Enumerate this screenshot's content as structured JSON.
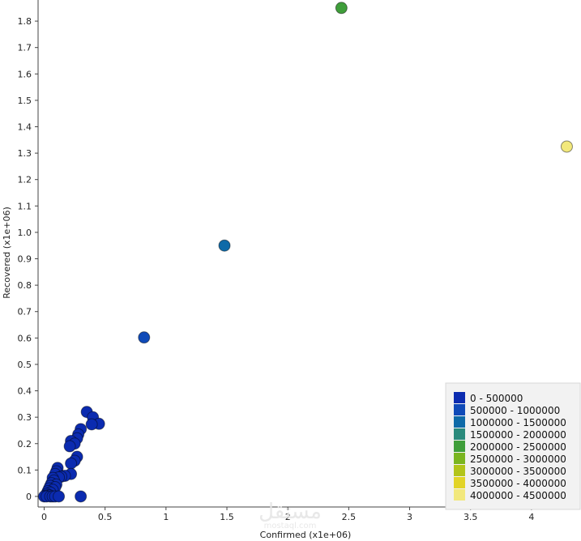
{
  "chart_data": {
    "type": "scatter",
    "title": "",
    "xlabel": "Confirmed (x1e+06)",
    "ylabel": "Recovered (x1e+06)",
    "xlim": [
      -0.05,
      4.4
    ],
    "ylim": [
      -0.04,
      1.88
    ],
    "grid": false,
    "legend_position": "bottom-right",
    "x_ticks": [
      0,
      0.5,
      1,
      1.5,
      2,
      2.5,
      3,
      3.5,
      4
    ],
    "x_tick_labels": [
      "0",
      "0.5",
      "1",
      "1.5",
      "2",
      "2.5",
      "3",
      "3.5",
      "4"
    ],
    "y_ticks": [
      0,
      0.1,
      0.2,
      0.3,
      0.4,
      0.5,
      0.6,
      0.7,
      0.8,
      0.9,
      1.0,
      1.1,
      1.2,
      1.3,
      1.4,
      1.5,
      1.6,
      1.7,
      1.8
    ],
    "y_tick_labels": [
      "0",
      "0.1",
      "0.2",
      "0.3",
      "0.4",
      "0.5",
      "0.6",
      "0.7",
      "0.8",
      "0.9",
      "1.0",
      "1.1",
      "1.2",
      "1.3",
      "1.4",
      "1.5",
      "1.6",
      "1.7",
      "1.8"
    ],
    "color_bins": [
      {
        "label": "0 - 500000",
        "color": "#0b2bb0"
      },
      {
        "label": "500000 - 1000000",
        "color": "#0f4ab8"
      },
      {
        "label": "1000000 - 1500000",
        "color": "#0e6aa8"
      },
      {
        "label": "1500000 - 2000000",
        "color": "#2a8a7c"
      },
      {
        "label": "2000000 - 2500000",
        "color": "#3f9e3a"
      },
      {
        "label": "2500000 - 3000000",
        "color": "#7ab51f"
      },
      {
        "label": "3000000 - 3500000",
        "color": "#b2c419"
      },
      {
        "label": "3500000 - 4000000",
        "color": "#e2d427"
      },
      {
        "label": "4000000 - 4500000",
        "color": "#f2e87c"
      }
    ],
    "points": [
      {
        "x": 4.29,
        "y": 1.325,
        "bin": 8
      },
      {
        "x": 2.44,
        "y": 1.85,
        "bin": 4
      },
      {
        "x": 1.48,
        "y": 0.95,
        "bin": 2
      },
      {
        "x": 0.82,
        "y": 0.602,
        "bin": 1
      },
      {
        "x": 0.35,
        "y": 0.32,
        "bin": 0
      },
      {
        "x": 0.4,
        "y": 0.3,
        "bin": 0
      },
      {
        "x": 0.45,
        "y": 0.275,
        "bin": 0
      },
      {
        "x": 0.39,
        "y": 0.273,
        "bin": 0
      },
      {
        "x": 0.3,
        "y": 0.255,
        "bin": 0
      },
      {
        "x": 0.28,
        "y": 0.235,
        "bin": 0
      },
      {
        "x": 0.27,
        "y": 0.22,
        "bin": 0
      },
      {
        "x": 0.22,
        "y": 0.21,
        "bin": 0
      },
      {
        "x": 0.25,
        "y": 0.2,
        "bin": 0
      },
      {
        "x": 0.21,
        "y": 0.19,
        "bin": 0
      },
      {
        "x": 0.27,
        "y": 0.15,
        "bin": 0
      },
      {
        "x": 0.25,
        "y": 0.135,
        "bin": 0
      },
      {
        "x": 0.22,
        "y": 0.125,
        "bin": 0
      },
      {
        "x": 0.11,
        "y": 0.108,
        "bin": 0
      },
      {
        "x": 0.1,
        "y": 0.095,
        "bin": 0
      },
      {
        "x": 0.09,
        "y": 0.085,
        "bin": 0
      },
      {
        "x": 0.22,
        "y": 0.085,
        "bin": 0
      },
      {
        "x": 0.17,
        "y": 0.078,
        "bin": 0
      },
      {
        "x": 0.14,
        "y": 0.075,
        "bin": 0
      },
      {
        "x": 0.12,
        "y": 0.072,
        "bin": 0
      },
      {
        "x": 0.07,
        "y": 0.07,
        "bin": 0
      },
      {
        "x": 0.08,
        "y": 0.06,
        "bin": 0
      },
      {
        "x": 0.06,
        "y": 0.05,
        "bin": 0
      },
      {
        "x": 0.1,
        "y": 0.045,
        "bin": 0
      },
      {
        "x": 0.05,
        "y": 0.04,
        "bin": 0
      },
      {
        "x": 0.09,
        "y": 0.035,
        "bin": 0
      },
      {
        "x": 0.04,
        "y": 0.03,
        "bin": 0
      },
      {
        "x": 0.07,
        "y": 0.025,
        "bin": 0
      },
      {
        "x": 0.03,
        "y": 0.02,
        "bin": 0
      },
      {
        "x": 0.05,
        "y": 0.015,
        "bin": 0
      },
      {
        "x": 0.02,
        "y": 0.01,
        "bin": 0
      },
      {
        "x": 0.04,
        "y": 0.005,
        "bin": 0
      },
      {
        "x": 0.01,
        "y": 0.003,
        "bin": 0
      },
      {
        "x": 0.0,
        "y": 0.0,
        "bin": 0
      },
      {
        "x": 0.02,
        "y": 0.0,
        "bin": 0
      },
      {
        "x": 0.05,
        "y": 0.0,
        "bin": 0
      },
      {
        "x": 0.07,
        "y": 0.0,
        "bin": 0
      },
      {
        "x": 0.09,
        "y": 0.0,
        "bin": 0
      },
      {
        "x": 0.12,
        "y": 0.0,
        "bin": 0
      },
      {
        "x": 0.3,
        "y": 0.0,
        "bin": 0
      }
    ]
  },
  "watermark": {
    "logo_text": "مستقل",
    "site_text": "mostaql.com"
  }
}
